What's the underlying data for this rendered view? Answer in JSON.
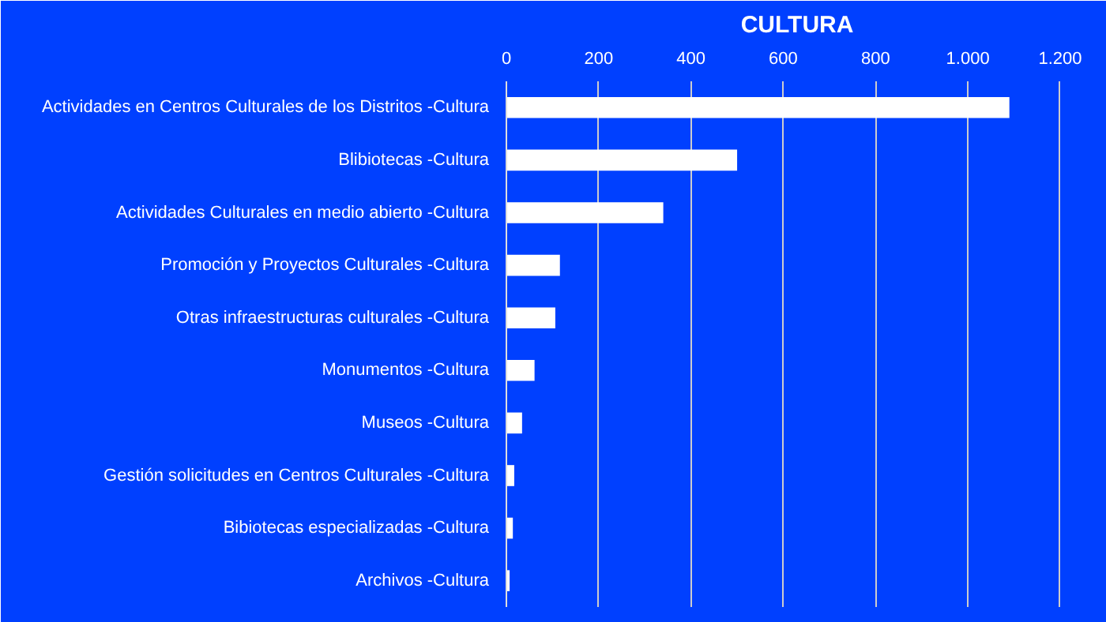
{
  "chart_data": {
    "type": "bar",
    "orientation": "horizontal",
    "title": "CULTURA",
    "categories": [
      "Actividades en Centros Culturales de los Distritos -Cultura",
      "Blibiotecas -Cultura",
      "Actividades Culturales en medio abierto -Cultura",
      "Promoción y Proyectos Culturales -Cultura",
      "Otras infraestructuras culturales -Cultura",
      "Monumentos -Cultura",
      "Museos -Cultura",
      "Gestión solicitudes en Centros Culturales -Cultura",
      "Bibiotecas especializadas -Cultura",
      "Archivos -Cultura"
    ],
    "values": [
      1090,
      500,
      340,
      116,
      106,
      61,
      34,
      17,
      14,
      7
    ],
    "color": "#ffffff",
    "xlim": [
      0,
      1260
    ],
    "xticks": [
      0,
      200,
      400,
      600,
      800,
      {
        "value": 1000,
        "label": "1.000"
      },
      {
        "value": 1200,
        "label": "1.200"
      }
    ],
    "grid": "x"
  }
}
